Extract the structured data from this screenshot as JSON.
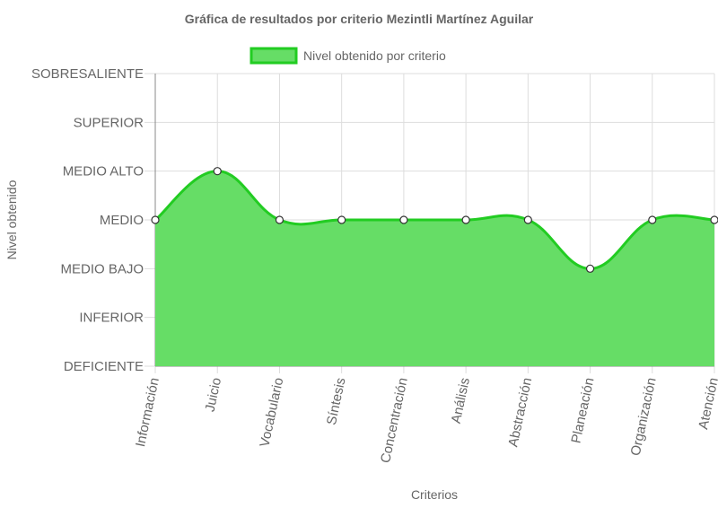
{
  "chart_data": {
    "type": "area",
    "title": "Gráfica de resultados por criterio Mezintli Martínez Aguilar",
    "xlabel": "Criterios",
    "ylabel": "Nivel obtenido",
    "levels": [
      "DEFICIENTE",
      "INFERIOR",
      "MEDIO BAJO",
      "MEDIO",
      "MEDIO ALTO",
      "SUPERIOR",
      "SOBRESALIENTE"
    ],
    "categories": [
      "Información",
      "Juicio",
      "Vocabulario",
      "Síntesis",
      "Concentración",
      "Análisis",
      "Abstracción",
      "Planeación",
      "Organización",
      "Atención"
    ],
    "series": [
      {
        "name": "Nivel obtenido por criterio",
        "values": [
          3,
          4,
          3,
          3,
          3,
          3,
          3,
          2,
          3,
          3
        ]
      }
    ],
    "ylim": [
      0,
      6
    ],
    "grid": true,
    "legend_position": "top",
    "colors": {
      "fill": "#66dd66",
      "stroke": "#22cc22",
      "point_fill": "#ffffff",
      "point_stroke": "#333333",
      "grid": "#dddddd",
      "axis": "#888888"
    }
  }
}
